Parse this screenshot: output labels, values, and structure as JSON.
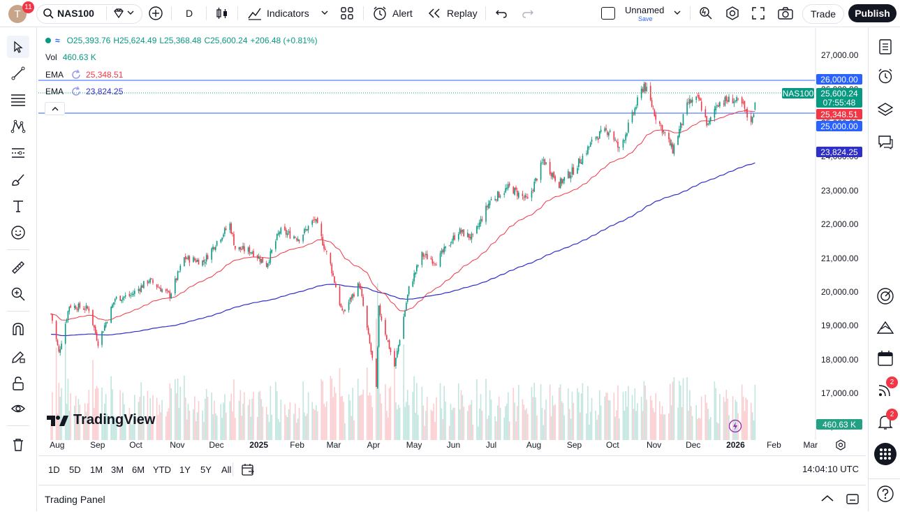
{
  "topbar": {
    "avatar_letter": "T",
    "avatar_badge": "11",
    "symbol": "NAS100",
    "interval": "D",
    "indicators_label": "Indicators",
    "alert_label": "Alert",
    "replay_label": "Replay",
    "layout_name": "Unnamed",
    "layout_save": "Save",
    "trade_label": "Trade",
    "publish_label": "Publish"
  },
  "legend": {
    "open": "O25,393.76",
    "high": "H25,624.49",
    "low": "L25,368.48",
    "close": "C25,600.24",
    "change": "+206.48 (+0.81%)",
    "vol_label": "Vol",
    "vol_value": "460.63 K",
    "ema1_label": "EMA",
    "ema1_value": "25,348.51",
    "ema2_label": "EMA",
    "ema2_value": "23,824.25"
  },
  "price_axis": {
    "ticks": [
      "27,000.00",
      "26,000.00",
      "25,000.00",
      "24,000.00",
      "23,000.00",
      "22,000.00",
      "21,000.00",
      "20,000.00",
      "19,000.00",
      "18,000.00",
      "17,000.00",
      "16,000.00"
    ],
    "label_26000": "26,000.00",
    "label_25000": "25,000.00",
    "symbol_tag": "NAS100",
    "last_price": "25,600.24",
    "countdown": "07:55:48",
    "ema1_tag": "25,348.51",
    "ema2_tag": "23,824.25",
    "volume_tag": "460.63 K"
  },
  "time_axis": [
    "Aug",
    "Sep",
    "Oct",
    "Nov",
    "Dec",
    "2025",
    "Feb",
    "Mar",
    "Apr",
    "May",
    "Jun",
    "Jul",
    "Aug",
    "Sep",
    "Oct",
    "Nov",
    "Dec",
    "2026",
    "Feb",
    "Mar"
  ],
  "ranges": [
    "1D",
    "5D",
    "1M",
    "3M",
    "6M",
    "YTD",
    "1Y",
    "5Y",
    "All"
  ],
  "clock": "14:04:10 UTC",
  "watermark": "TradingView",
  "trading_panel": "Trading Panel",
  "right_badges": {
    "feed": "2",
    "alerts": "2"
  },
  "colors": {
    "up": "#089981",
    "down": "#f23645",
    "ema_fast": "#f23645",
    "ema_slow": "#2e2ec8",
    "hline": "#2962ff",
    "publish_bg": "#131722"
  },
  "chart_data": {
    "type": "candlestick",
    "series": [
      {
        "name": "NAS100",
        "anchor_closes": [
          [
            "2024-08-01",
            19350
          ],
          [
            "2024-08-07",
            18200
          ],
          [
            "2024-08-15",
            19600
          ],
          [
            "2024-08-30",
            19500
          ],
          [
            "2024-09-06",
            18500
          ],
          [
            "2024-09-19",
            19800
          ],
          [
            "2024-10-01",
            19900
          ],
          [
            "2024-10-15",
            20350
          ],
          [
            "2024-10-31",
            19900
          ],
          [
            "2024-11-11",
            21000
          ],
          [
            "2024-11-26",
            20900
          ],
          [
            "2024-12-06",
            21500
          ],
          [
            "2024-12-16",
            22000
          ],
          [
            "2024-12-20",
            21300
          ],
          [
            "2025-01-02",
            21200
          ],
          [
            "2025-01-13",
            20800
          ],
          [
            "2025-01-23",
            21800
          ],
          [
            "2025-02-07",
            21600
          ],
          [
            "2025-02-19",
            22150
          ],
          [
            "2025-03-03",
            20800
          ],
          [
            "2025-03-12",
            19350
          ],
          [
            "2025-03-25",
            20250
          ],
          [
            "2025-04-04",
            18000
          ],
          [
            "2025-04-07",
            17100
          ],
          [
            "2025-04-09",
            19500
          ],
          [
            "2025-04-21",
            17800
          ],
          [
            "2025-05-02",
            20100
          ],
          [
            "2025-05-12",
            21100
          ],
          [
            "2025-05-23",
            20900
          ],
          [
            "2025-06-09",
            21800
          ],
          [
            "2025-06-20",
            21600
          ],
          [
            "2025-07-03",
            22700
          ],
          [
            "2025-07-18",
            23100
          ],
          [
            "2025-08-01",
            22700
          ],
          [
            "2025-08-13",
            23900
          ],
          [
            "2025-08-25",
            23200
          ],
          [
            "2025-09-05",
            23600
          ],
          [
            "2025-09-22",
            24600
          ],
          [
            "2025-10-03",
            24800
          ],
          [
            "2025-10-10",
            24200
          ],
          [
            "2025-10-20",
            25200
          ],
          [
            "2025-10-29",
            26150
          ],
          [
            "2025-11-07",
            25200
          ],
          [
            "2025-11-20",
            24200
          ],
          [
            "2025-12-02",
            25600
          ],
          [
            "2025-12-10",
            25700
          ],
          [
            "2025-12-17",
            24900
          ],
          [
            "2025-12-24",
            25600
          ],
          [
            "2026-01-05",
            25700
          ],
          [
            "2026-01-13",
            25500
          ],
          [
            "2026-01-16",
            25200
          ],
          [
            "2026-01-20",
            25100
          ],
          [
            "2026-01-22",
            25600
          ]
        ]
      },
      {
        "name": "EMA",
        "value": 25348.51
      },
      {
        "name": "EMA",
        "value": 23824.25
      }
    ],
    "horizontal_lines": [
      26000,
      25000
    ],
    "ylim": [
      15700,
      27400
    ],
    "x_range": [
      "2024-07-25",
      "2026-03-20"
    ],
    "y_ticks": [
      16000,
      17000,
      18000,
      19000,
      20000,
      21000,
      22000,
      23000,
      24000,
      25000,
      26000,
      27000
    ],
    "last": {
      "open": 25393.76,
      "high": 25624.49,
      "low": 25368.48,
      "close": 25600.24,
      "change": 206.48,
      "change_pct": 0.81,
      "volume": "460.63 K"
    }
  }
}
